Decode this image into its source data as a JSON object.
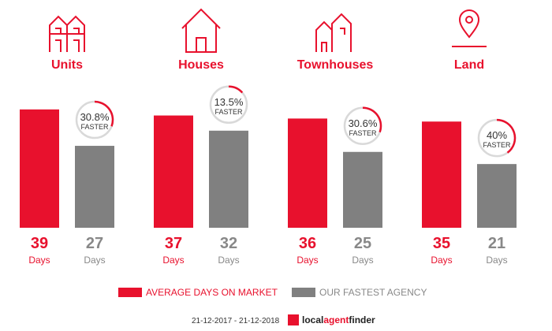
{
  "colors": {
    "average": "#e8112d",
    "fastest": "#808080",
    "ring": "#d9d9d9"
  },
  "chart_data": {
    "type": "bar",
    "categories": [
      "Units",
      "Houses",
      "Townhouses",
      "Land"
    ],
    "series": [
      {
        "name": "AVERAGE DAYS ON MARKET",
        "values": [
          39,
          37,
          36,
          35
        ]
      },
      {
        "name": "OUR FASTEST AGENCY",
        "values": [
          27,
          32,
          25,
          21
        ]
      }
    ],
    "faster_pct": [
      "30.8%",
      "13.5%",
      "30.6%",
      "40%"
    ],
    "faster_values": [
      30.8,
      13.5,
      30.6,
      40
    ],
    "faster_label": "FASTER",
    "unit_label": "Days",
    "icons": [
      "units-icon",
      "house-icon",
      "townhouse-icon",
      "land-pin-icon"
    ],
    "legend_placement": "bottom"
  },
  "footer": {
    "date_range": "21-12-2017 - 21-12-2018",
    "brand_local": "local",
    "brand_agent": "agent",
    "brand_finder": "finder"
  }
}
